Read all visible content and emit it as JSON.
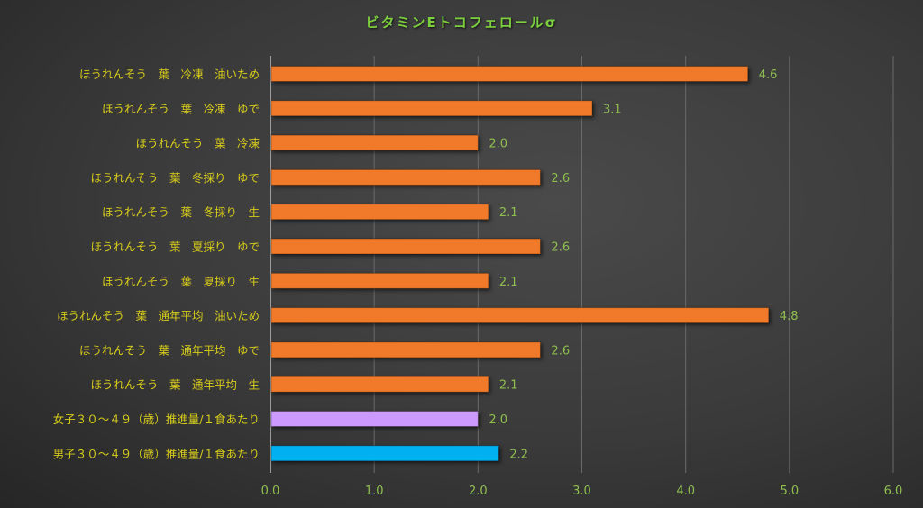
{
  "chart_data": {
    "type": "bar",
    "orientation": "horizontal",
    "title": "ビタミンEトコフェロールσ",
    "categories": [
      "ほうれんそう　葉　冷凍　油いため",
      "ほうれんそう　葉　冷凍　ゆで",
      "ほうれんそう　葉　冷凍",
      "ほうれんそう　葉　冬採り　ゆで",
      "ほうれんそう　葉　冬採り　生",
      "ほうれんそう　葉　夏採り　ゆで",
      "ほうれんそう　葉　夏採り　生",
      "ほうれんそう　葉　通年平均　油いため",
      "ほうれんそう　葉　通年平均　ゆで",
      "ほうれんそう　葉　通年平均　生",
      "女子３０～４９（歳）推進量/１食あたり",
      "男子３０～４９（歳）推進量/１食あたり"
    ],
    "values": [
      4.6,
      3.1,
      2.0,
      2.6,
      2.1,
      2.6,
      2.1,
      4.8,
      2.6,
      2.1,
      2.0,
      2.2
    ],
    "value_labels": [
      "4.6",
      "3.1",
      "2.0",
      "2.6",
      "2.1",
      "2.6",
      "2.1",
      "4.8",
      "2.6",
      "2.1",
      "2.0",
      "2.2"
    ],
    "bar_colors": [
      "#f07a2a",
      "#f07a2a",
      "#f07a2a",
      "#f07a2a",
      "#f07a2a",
      "#f07a2a",
      "#f07a2a",
      "#f07a2a",
      "#f07a2a",
      "#f07a2a",
      "#cc99ff",
      "#00b0f0"
    ],
    "xlim": [
      0,
      6
    ],
    "xticks": [
      "0.0",
      "1.0",
      "2.0",
      "3.0",
      "4.0",
      "5.0",
      "6.0"
    ],
    "grid": true,
    "xlabel": "",
    "ylabel": ""
  }
}
